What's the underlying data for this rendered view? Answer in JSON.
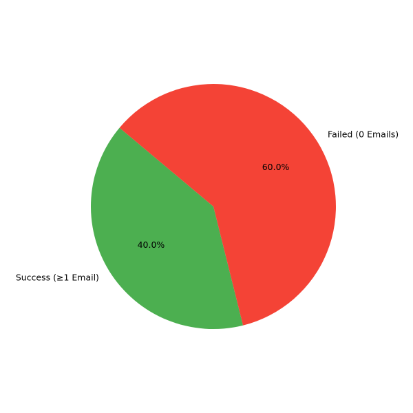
{
  "chart_data": {
    "type": "pie",
    "title": "",
    "start_angle_deg": 140,
    "direction": "counterclockwise",
    "slices": [
      {
        "label": "Success (≥1 Email)",
        "value": 40.0,
        "percent_label": "40.0%",
        "color": "#4caf50"
      },
      {
        "label": "Failed (0 Emails)",
        "value": 60.0,
        "percent_label": "60.0%",
        "color": "#f44336"
      }
    ],
    "legend": "none"
  }
}
